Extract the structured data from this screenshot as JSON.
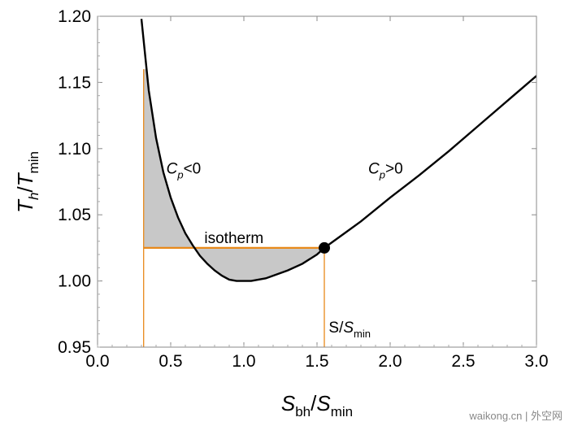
{
  "chart_data": {
    "type": "line",
    "xlabel": {
      "main": "S",
      "sub1": "bh",
      "sep": "/",
      "main2": "S",
      "sub2": "min"
    },
    "ylabel": {
      "main": "T",
      "sub1": "h",
      "sep": "/",
      "main2": "T",
      "sub2": "min"
    },
    "xlim": [
      0.0,
      3.0
    ],
    "ylim": [
      0.95,
      1.2
    ],
    "xticks": [
      "0.0",
      "0.5",
      "1.0",
      "1.5",
      "2.0",
      "2.5",
      "3.0"
    ],
    "yticks": [
      "0.95",
      "1.00",
      "1.05",
      "1.10",
      "1.15",
      "1.20"
    ],
    "curve": {
      "x": [
        0.3,
        0.35,
        0.4,
        0.45,
        0.5,
        0.55,
        0.6,
        0.65,
        0.7,
        0.75,
        0.8,
        0.85,
        0.9,
        0.95,
        1.0,
        1.05,
        1.1,
        1.15,
        1.2,
        1.3,
        1.4,
        1.5,
        1.55,
        1.6,
        1.7,
        1.8,
        2.0,
        2.2,
        2.4,
        2.6,
        2.8,
        3.0
      ],
      "y": [
        1.198,
        1.144,
        1.108,
        1.082,
        1.063,
        1.048,
        1.036,
        1.027,
        1.019,
        1.013,
        1.008,
        1.004,
        1.001,
        1.0,
        1.0,
        1.0,
        1.001,
        1.002,
        1.004,
        1.008,
        1.013,
        1.02,
        1.025,
        1.029,
        1.037,
        1.045,
        1.063,
        1.08,
        1.098,
        1.117,
        1.136,
        1.155
      ],
      "color": "#000000"
    },
    "isotherm": {
      "y": 1.025,
      "x_start": 0.315,
      "x_end": 1.55,
      "color": "#e8891a"
    },
    "vertical_lines": [
      {
        "x": 0.315,
        "y_top": 1.16,
        "color": "#e8891a"
      },
      {
        "x": 1.55,
        "y_top": 1.025,
        "color": "#e8891a"
      }
    ],
    "point": {
      "x": 1.55,
      "y": 1.025,
      "color": "#000000"
    },
    "shaded_region_color": "#c8c8c8",
    "annotations": {
      "cp_neg": {
        "main": "C",
        "sub": "p",
        "rest": "<0",
        "x": 0.47,
        "y": 1.081
      },
      "cp_pos": {
        "main": "C",
        "sub": "p",
        "rest": ">0",
        "x": 1.85,
        "y": 1.081
      },
      "isotherm": {
        "text": "isotherm",
        "x": 0.73,
        "y": 1.0285
      },
      "s_smin": {
        "pre": "S/",
        "main": "S",
        "sub": "min",
        "x": 1.58,
        "y": 0.961
      }
    },
    "grid": false
  },
  "watermark": "waikong.cn | 外空网"
}
